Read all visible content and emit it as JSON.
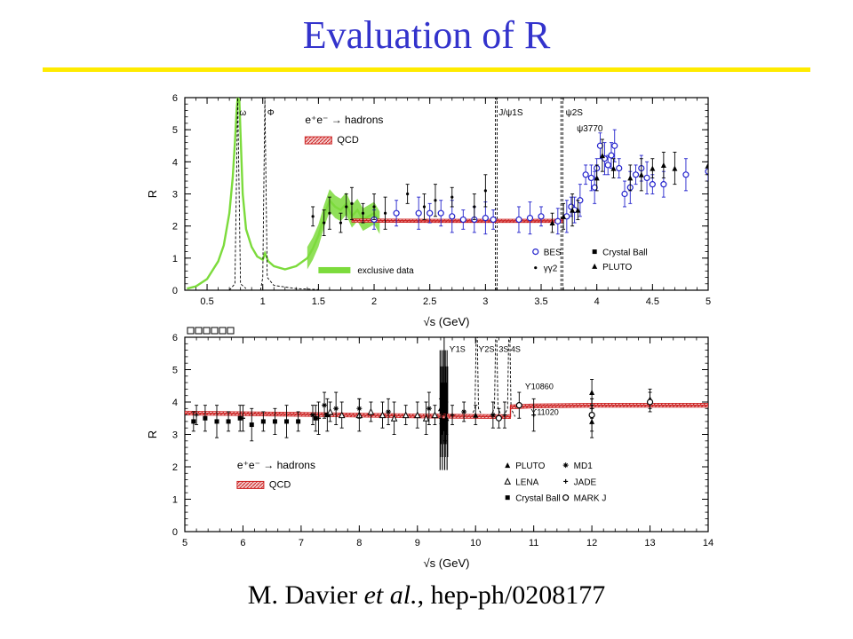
{
  "slide": {
    "title": "Evaluation of R",
    "rule_color": "#ffeb00",
    "title_color": "#3333cc",
    "citation": {
      "author": "M. Davier ",
      "etal": "et al.",
      "ref": ", hep-ph/0208177"
    }
  },
  "chart_data": [
    {
      "type": "scatter",
      "xlabel": "√s (GeV)",
      "ylabel": "R",
      "xlim": [
        0.3,
        5.0
      ],
      "ylim": [
        0,
        6
      ],
      "xticks": [
        "0.5",
        "1",
        "1.5",
        "2",
        "2.5",
        "3",
        "3.5",
        "4",
        "4.5",
        "5"
      ],
      "yticks": [
        "0",
        "1",
        "2",
        "3",
        "4",
        "5",
        "6"
      ],
      "process_label": "e⁺e⁻ → hadrons",
      "resonance_labels": [
        {
          "text": "ω",
          "x": 0.78
        },
        {
          "text": "Φ",
          "x": 1.02
        },
        {
          "text": "J/ψ1S",
          "x": 3.1
        },
        {
          "text": "ψ2S",
          "x": 3.69
        },
        {
          "text": "ψ3770",
          "x": 3.77
        }
      ],
      "legend": [
        "QCD",
        "exclusive data",
        "BES",
        "γγ2",
        "Crystal Ball",
        "PLUTO"
      ],
      "colors": {
        "qcd": "#cc2222",
        "exclusive": "#7cdb3c",
        "bes": "#2222cc",
        "data": "#000000"
      },
      "qcd_band": [
        [
          1.8,
          2.17
        ],
        [
          2.5,
          2.16
        ],
        [
          3.0,
          2.16
        ],
        [
          3.7,
          2.16
        ]
      ],
      "exclusive_curve": [
        [
          0.32,
          0.05
        ],
        [
          0.4,
          0.12
        ],
        [
          0.5,
          0.35
        ],
        [
          0.6,
          0.9
        ],
        [
          0.65,
          1.4
        ],
        [
          0.7,
          2.4
        ],
        [
          0.73,
          3.5
        ],
        [
          0.75,
          4.6
        ],
        [
          0.765,
          5.6
        ],
        [
          0.775,
          6.0
        ],
        [
          0.79,
          5.9
        ],
        [
          0.8,
          4.9
        ],
        [
          0.82,
          3.0
        ],
        [
          0.85,
          1.9
        ],
        [
          0.9,
          1.35
        ],
        [
          0.95,
          1.05
        ],
        [
          1.0,
          0.95
        ],
        [
          1.02,
          1.15
        ],
        [
          1.05,
          0.9
        ],
        [
          1.1,
          0.75
        ],
        [
          1.2,
          0.65
        ],
        [
          1.3,
          0.75
        ],
        [
          1.4,
          1.0
        ],
        [
          1.45,
          1.3
        ],
        [
          1.5,
          1.7
        ],
        [
          1.55,
          2.3
        ],
        [
          1.6,
          2.8
        ],
        [
          1.65,
          2.6
        ],
        [
          1.7,
          2.5
        ],
        [
          1.75,
          2.7
        ],
        [
          1.8,
          2.3
        ],
        [
          1.85,
          2.5
        ],
        [
          1.9,
          2.2
        ],
        [
          2.0,
          2.4
        ],
        [
          2.05,
          2.1
        ]
      ],
      "exclusive_band_x": [
        1.4,
        2.05
      ],
      "resonance_omega": [
        [
          0.7,
          0.0
        ],
        [
          0.75,
          0.2
        ],
        [
          0.775,
          6.0
        ],
        [
          0.8,
          0.2
        ],
        [
          0.85,
          0.05
        ]
      ],
      "resonance_phi": [
        [
          0.98,
          0.0
        ],
        [
          1.0,
          0.4
        ],
        [
          1.019,
          6.0
        ],
        [
          1.04,
          0.4
        ],
        [
          1.1,
          0.15
        ],
        [
          1.3,
          0.05
        ],
        [
          1.5,
          0.02
        ]
      ],
      "jpsi_x": 3.097,
      "psi2s_x": 3.686,
      "series": [
        {
          "name": "BES",
          "marker": "open-circle",
          "points": [
            [
              2.0,
              2.2
            ],
            [
              2.2,
              2.4
            ],
            [
              2.4,
              2.4
            ],
            [
              2.5,
              2.4
            ],
            [
              2.6,
              2.4
            ],
            [
              2.7,
              2.3
            ],
            [
              2.8,
              2.2
            ],
            [
              2.9,
              2.2
            ],
            [
              3.0,
              2.25
            ],
            [
              3.07,
              2.2
            ],
            [
              3.3,
              2.2
            ],
            [
              3.4,
              2.25
            ],
            [
              3.5,
              2.3
            ],
            [
              3.65,
              2.15
            ],
            [
              3.73,
              2.3
            ],
            [
              3.77,
              2.6
            ],
            [
              3.8,
              2.5
            ],
            [
              3.85,
              2.8
            ],
            [
              3.9,
              3.6
            ],
            [
              3.95,
              3.5
            ],
            [
              3.98,
              3.2
            ],
            [
              4.0,
              3.8
            ],
            [
              4.03,
              4.5
            ],
            [
              4.07,
              4.1
            ],
            [
              4.1,
              3.9
            ],
            [
              4.13,
              4.2
            ],
            [
              4.16,
              4.5
            ],
            [
              4.2,
              3.8
            ],
            [
              4.25,
              3.0
            ],
            [
              4.3,
              3.2
            ],
            [
              4.35,
              3.6
            ],
            [
              4.4,
              3.8
            ],
            [
              4.45,
              3.5
            ],
            [
              4.5,
              3.3
            ],
            [
              4.6,
              3.3
            ],
            [
              4.8,
              3.6
            ],
            [
              5.0,
              3.7
            ]
          ]
        },
        {
          "name": "γγ2",
          "marker": "dot",
          "points": [
            [
              1.45,
              2.3
            ],
            [
              1.55,
              2.1
            ],
            [
              1.6,
              2.4
            ],
            [
              1.7,
              2.1
            ],
            [
              1.75,
              2.6
            ],
            [
              1.8,
              2.7
            ],
            [
              1.9,
              2.4
            ],
            [
              2.0,
              2.6
            ],
            [
              2.1,
              2.4
            ],
            [
              2.3,
              3.0
            ],
            [
              2.45,
              2.6
            ],
            [
              2.55,
              2.8
            ],
            [
              2.7,
              2.9
            ],
            [
              2.9,
              2.6
            ],
            [
              3.0,
              3.1
            ]
          ]
        },
        {
          "name": "PLUTO",
          "marker": "triangle",
          "points": [
            [
              3.6,
              2.1
            ],
            [
              3.7,
              2.3
            ],
            [
              3.78,
              2.5
            ],
            [
              3.83,
              2.5
            ],
            [
              4.0,
              3.5
            ],
            [
              4.05,
              4.2
            ],
            [
              4.15,
              3.8
            ],
            [
              4.3,
              3.5
            ],
            [
              4.4,
              3.6
            ],
            [
              4.5,
              3.8
            ],
            [
              4.6,
              3.9
            ],
            [
              4.7,
              3.8
            ],
            [
              5.0,
              3.9
            ]
          ]
        }
      ]
    },
    {
      "type": "scatter",
      "xlabel": "√s (GeV)",
      "ylabel": "R",
      "xlim": [
        5,
        14
      ],
      "ylim": [
        0,
        6
      ],
      "xticks": [
        "5",
        "6",
        "7",
        "8",
        "9",
        "10",
        "11",
        "12",
        "13",
        "14"
      ],
      "yticks": [
        "0",
        "1",
        "2",
        "3",
        "4",
        "5",
        "6"
      ],
      "process_label": "e⁺e⁻ → hadrons",
      "header_boxes": 6,
      "resonance_labels": [
        {
          "text": "ϒ1S",
          "x": 9.46
        },
        {
          "text": "ϒ2S",
          "x": 10.02
        },
        {
          "text": "3S 4S",
          "x": 10.35
        },
        {
          "text": "ϒ10860",
          "x": 10.86
        },
        {
          "text": "ϒ11020",
          "x": 11.02
        }
      ],
      "legend": [
        "QCD",
        "PLUTO",
        "LENA",
        "Crystal Ball",
        "MD1",
        "JADE",
        "MARK J"
      ],
      "colors": {
        "qcd": "#cc2222",
        "data": "#000000"
      },
      "qcd_band": [
        [
          5.0,
          3.66
        ],
        [
          7.0,
          3.62
        ],
        [
          9.0,
          3.57
        ],
        [
          10.5,
          3.55
        ],
        [
          10.6,
          3.55
        ],
        [
          10.6,
          3.85
        ],
        [
          11.0,
          3.88
        ],
        [
          12.0,
          3.9
        ],
        [
          14.0,
          3.9
        ]
      ],
      "upsilon_1s_x": 9.46,
      "upsilon_2s_x": 10.02,
      "upsilon_3s_x": 10.355,
      "upsilon_4s_x": 10.58,
      "series": [
        {
          "name": "Crystal Ball",
          "marker": "square",
          "points": [
            [
              5.15,
              3.4
            ],
            [
              5.35,
              3.5
            ],
            [
              5.55,
              3.4
            ],
            [
              5.75,
              3.4
            ],
            [
              5.95,
              3.5
            ],
            [
              6.15,
              3.3
            ],
            [
              6.35,
              3.4
            ],
            [
              6.55,
              3.4
            ],
            [
              6.75,
              3.4
            ],
            [
              6.95,
              3.4
            ],
            [
              7.25,
              3.5
            ],
            [
              7.45,
              3.6
            ],
            [
              9.44,
              3.9
            ],
            [
              9.48,
              3.2
            ]
          ]
        },
        {
          "name": "LENA",
          "marker": "open-triangle",
          "points": [
            [
              7.5,
              3.7
            ],
            [
              7.7,
              3.6
            ],
            [
              8.0,
              3.6
            ],
            [
              8.2,
              3.7
            ],
            [
              8.4,
              3.6
            ],
            [
              8.6,
              3.5
            ],
            [
              8.8,
              3.6
            ],
            [
              9.0,
              3.6
            ],
            [
              9.15,
              3.5
            ],
            [
              9.3,
              3.6
            ]
          ]
        },
        {
          "name": "PLUTO",
          "marker": "triangle",
          "points": [
            [
              9.4,
              3.8
            ],
            [
              9.42,
              3.4
            ],
            [
              9.5,
              3.5
            ],
            [
              10.0,
              3.6
            ],
            [
              12.0,
              4.3
            ],
            [
              12.0,
              3.4
            ],
            [
              13.0,
              4.1
            ]
          ]
        },
        {
          "name": "MD1",
          "marker": "star",
          "points": [
            [
              7.2,
              3.6
            ],
            [
              7.4,
              3.9
            ],
            [
              7.6,
              3.8
            ],
            [
              8.0,
              3.8
            ],
            [
              8.5,
              3.7
            ],
            [
              9.2,
              3.8
            ],
            [
              9.8,
              3.7
            ],
            [
              10.3,
              3.6
            ]
          ]
        },
        {
          "name": "JADE",
          "marker": "cross",
          "points": [
            [
              5.2,
              3.6
            ],
            [
              6.0,
              3.5
            ],
            [
              7.3,
              3.5
            ],
            [
              9.6,
              3.6
            ],
            [
              10.5,
              3.6
            ],
            [
              11.0,
              3.6
            ],
            [
              12.0,
              3.8
            ]
          ]
        },
        {
          "name": "MARK J",
          "marker": "open-circle",
          "points": [
            [
              10.4,
              3.5
            ],
            [
              10.75,
              3.9
            ],
            [
              12.0,
              3.6
            ],
            [
              13.0,
              4.0
            ]
          ]
        }
      ]
    }
  ]
}
